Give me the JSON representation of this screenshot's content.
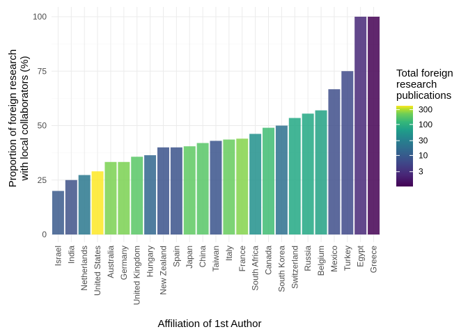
{
  "chart_data": {
    "type": "bar",
    "xlabel": "Affiliation of 1st Author",
    "ylabel_lines": [
      "Proportion of foreign research",
      "with local collaborators (%)"
    ],
    "ylim": [
      0,
      100
    ],
    "yticks": [
      0,
      25,
      50,
      75,
      100
    ],
    "grid": true,
    "categories": [
      "Israel",
      "India",
      "Netherlands",
      "United States",
      "Australia",
      "Germany",
      "United Kingdom",
      "Hungary",
      "New Zealand",
      "Spain",
      "Japan",
      "China",
      "Taiwan",
      "Italy",
      "France",
      "South Africa",
      "Canada",
      "South Korea",
      "Switzerland",
      "Russia",
      "Belgium",
      "Mexico",
      "Turkey",
      "Egypt",
      "Greece"
    ],
    "values": [
      20,
      25,
      27.3,
      29,
      33.3,
      33.3,
      35.7,
      36.4,
      40,
      40,
      40.5,
      42,
      43,
      43.6,
      44,
      46.2,
      49,
      50,
      53.5,
      55.5,
      57,
      66.7,
      75,
      100,
      100
    ],
    "total_publications": [
      5,
      4,
      20,
      350,
      150,
      150,
      70,
      6,
      5,
      6,
      60,
      80,
      5,
      100,
      150,
      20,
      50,
      16,
      28,
      25,
      25,
      5,
      4,
      2,
      1
    ],
    "colors": [
      "#3b5a8c",
      "#3f5288",
      "#2a788e",
      "#fde725",
      "#7ad151",
      "#7ad151",
      "#58c765",
      "#31668e",
      "#3b528b",
      "#3b528b",
      "#5ec962",
      "#57c666",
      "#3a548c",
      "#66cb5d",
      "#84d44b",
      "#21918c",
      "#3fbc73",
      "#2d708e",
      "#22a884",
      "#22a884",
      "#22a184",
      "#3f4f8b",
      "#3e4989",
      "#482878",
      "#440154"
    ],
    "legend": {
      "title_lines": [
        "Total foreign",
        "research",
        "publications"
      ],
      "labels": [
        "300",
        "100",
        "30",
        "10",
        "3"
      ],
      "position": "right"
    }
  }
}
